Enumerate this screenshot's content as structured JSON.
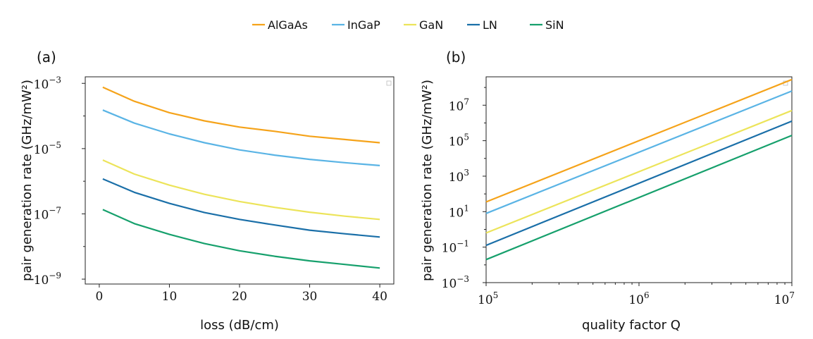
{
  "legend": [
    {
      "name": "AlGaAs",
      "color": "#f5a31a"
    },
    {
      "name": "InGaP",
      "color": "#5ab4e5"
    },
    {
      "name": "GaN",
      "color": "#ece45a"
    },
    {
      "name": "LN",
      "color": "#1a6fa8"
    },
    {
      "name": "SiN",
      "color": "#16a06c"
    }
  ],
  "chart_data": [
    {
      "panel_label": "(a)",
      "type": "line",
      "xlabel": "loss (dB/cm)",
      "ylabel": "pair generation rate (GHz/mW²)",
      "yscale": "log",
      "xlim": [
        -2,
        42
      ],
      "ylim_log10": [
        -9.15,
        -2.8
      ],
      "x_ticks": [
        {
          "value": 0,
          "label": "0"
        },
        {
          "value": 10,
          "label": "10"
        },
        {
          "value": 20,
          "label": "20"
        },
        {
          "value": 30,
          "label": "30"
        },
        {
          "value": 40,
          "label": "40"
        }
      ],
      "y_ticks": [
        {
          "exp": -3,
          "base": "10",
          "power": "−3"
        },
        {
          "exp": -5,
          "base": "10",
          "power": "−5"
        },
        {
          "exp": -7,
          "base": "10",
          "power": "−7"
        },
        {
          "exp": -9,
          "base": "10",
          "power": "−9"
        }
      ],
      "x": [
        0.5,
        5,
        10,
        15,
        20,
        25,
        30,
        35,
        40
      ],
      "series": [
        {
          "name": "AlGaAs",
          "log10_values": [
            -3.12,
            -3.55,
            -3.9,
            -4.15,
            -4.34,
            -4.47,
            -4.62,
            -4.72,
            -4.82
          ]
        },
        {
          "name": "InGaP",
          "log10_values": [
            -3.82,
            -4.22,
            -4.55,
            -4.82,
            -5.04,
            -5.2,
            -5.33,
            -5.43,
            -5.52
          ]
        },
        {
          "name": "GaN",
          "log10_values": [
            -5.35,
            -5.78,
            -6.12,
            -6.4,
            -6.62,
            -6.8,
            -6.95,
            -7.07,
            -7.17
          ]
        },
        {
          "name": "LN",
          "log10_values": [
            -5.93,
            -6.34,
            -6.68,
            -6.96,
            -7.17,
            -7.34,
            -7.5,
            -7.61,
            -7.71
          ]
        },
        {
          "name": "SiN",
          "log10_values": [
            -6.87,
            -7.3,
            -7.63,
            -7.91,
            -8.13,
            -8.3,
            -8.44,
            -8.55,
            -8.66
          ]
        }
      ]
    },
    {
      "panel_label": "(b)",
      "type": "line",
      "xlabel": "quality factor Q",
      "ylabel": "pair generation rate (GHz/mW²)",
      "xscale": "log",
      "yscale": "log",
      "xlim_log10": [
        5,
        7
      ],
      "ylim_log10": [
        -3,
        8.6
      ],
      "x_ticks": [
        {
          "exp": 5,
          "base": "10",
          "power": "5"
        },
        {
          "exp": 6,
          "base": "10",
          "power": "6"
        },
        {
          "exp": 7,
          "base": "10",
          "power": "7"
        }
      ],
      "y_ticks": [
        {
          "exp": 7,
          "base": "10",
          "power": "7"
        },
        {
          "exp": 5,
          "base": "10",
          "power": "5"
        },
        {
          "exp": 3,
          "base": "10",
          "power": "3"
        },
        {
          "exp": 1,
          "base": "10",
          "power": "1"
        },
        {
          "exp": -1,
          "base": "10",
          "power": "−1"
        },
        {
          "exp": -3,
          "base": "10",
          "power": "−3"
        }
      ],
      "x_log10": [
        5,
        7
      ],
      "series": [
        {
          "name": "AlGaAs",
          "log10_values": [
            1.55,
            8.45
          ]
        },
        {
          "name": "InGaP",
          "log10_values": [
            0.9,
            7.8
          ]
        },
        {
          "name": "GaN",
          "log10_values": [
            -0.2,
            6.7
          ]
        },
        {
          "name": "LN",
          "log10_values": [
            -0.9,
            6.1
          ]
        },
        {
          "name": "SiN",
          "log10_values": [
            -1.7,
            5.3
          ]
        }
      ]
    }
  ]
}
